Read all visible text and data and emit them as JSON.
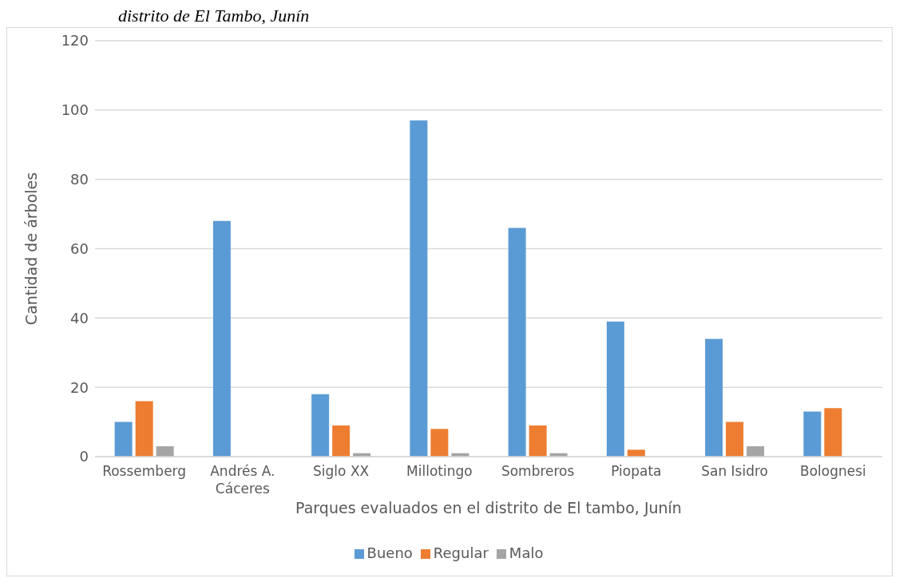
{
  "chart_data": {
    "type": "bar",
    "title": "distrito de El Tambo, Junín",
    "xlabel": "Parques evaluados en el distrito de El tambo, Junín",
    "ylabel": "Cantidad de árboles",
    "categories": [
      "Rossemberg",
      "Andrés A. Cáceres",
      "Siglo XX",
      "Millotingo",
      "Sombreros",
      "Piopata",
      "San Isidro",
      "Bolognesi"
    ],
    "series": [
      {
        "name": "Bueno",
        "color": "#5b9bd5",
        "values": [
          10,
          68,
          18,
          97,
          66,
          39,
          34,
          13
        ]
      },
      {
        "name": "Regular",
        "color": "#ed7d31",
        "values": [
          16,
          0,
          9,
          8,
          9,
          2,
          10,
          14
        ]
      },
      {
        "name": "Malo",
        "color": "#a5a5a5",
        "values": [
          3,
          0,
          1,
          1,
          1,
          0,
          3,
          0
        ]
      }
    ],
    "ylim": [
      0,
      120
    ],
    "yticks": [
      0,
      20,
      40,
      60,
      80,
      100,
      120
    ],
    "grid": "y",
    "legend": "bottom"
  }
}
